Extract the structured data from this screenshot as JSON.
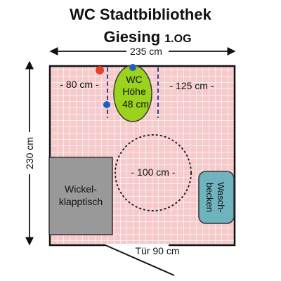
{
  "title": {
    "line1": "WC Stadtbibliothek",
    "line2": "Giesing",
    "floor": "1.OG"
  },
  "dimensions": {
    "width": "235 cm",
    "height": "230 cm",
    "left_gap": "- 80 cm -",
    "right_gap": "- 125 cm -",
    "turning_circle": "- 100 cm -",
    "door": "Tür 90 cm"
  },
  "wc": {
    "line1": "WC",
    "line2": "Höhe",
    "line3": "48 cm"
  },
  "changing_table": {
    "line1": "Wickel-",
    "line2": "klapptisch"
  },
  "sink": {
    "line1": "Wasch-",
    "line2": "becken"
  },
  "colors": {
    "floor_tile": "#f6caca",
    "grid_line": "#ffffff",
    "wc_fill": "#9bd21c",
    "changing_table_fill": "#999999",
    "sink_fill": "#6fb3be",
    "handle_blue": "#1f5fc4",
    "handle_red": "#e6402a",
    "grab_bar": "#3a3aa0"
  }
}
